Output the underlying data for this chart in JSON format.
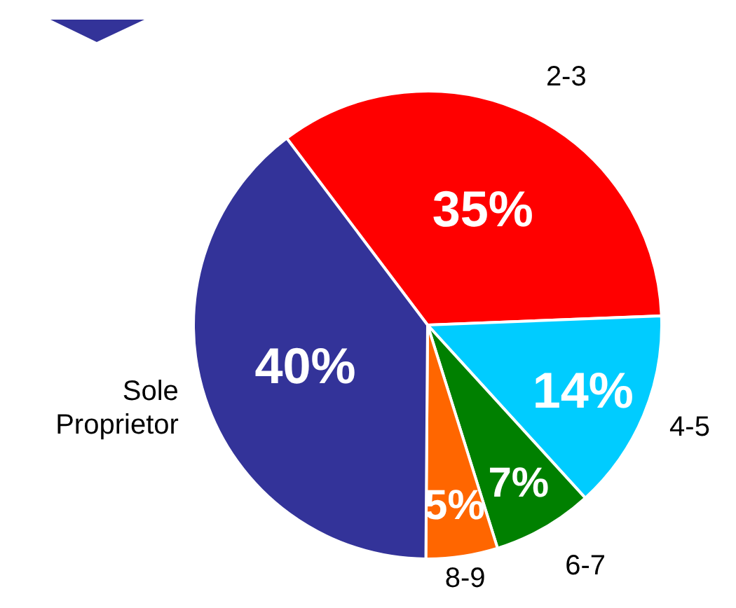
{
  "chart_data": {
    "type": "pie",
    "categories": [
      "2-3",
      "4-5",
      "6-7",
      "8-9",
      "Sole Proprietor"
    ],
    "values": [
      35,
      14,
      7,
      5,
      40
    ],
    "colors": [
      "#ff0000",
      "#00ccff",
      "#008000",
      "#ff6600",
      "#333399"
    ],
    "value_labels": [
      "35%",
      "14%",
      "7%",
      "5%",
      "40%"
    ]
  }
}
